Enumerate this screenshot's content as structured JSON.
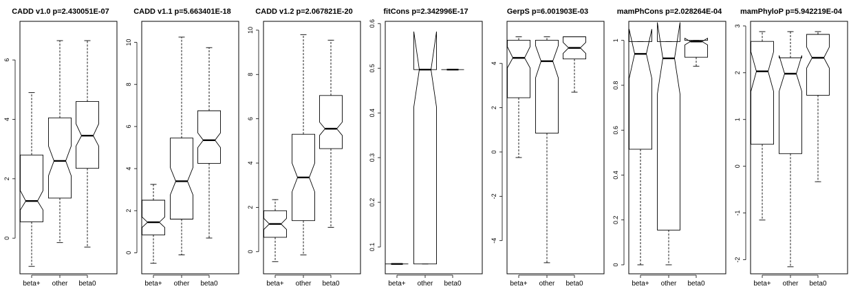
{
  "chart_data": [
    {
      "type": "box",
      "title": "CADD v1.0 p=2.430051E-07",
      "categories": [
        "beta+",
        "other",
        "beta0"
      ],
      "ylim": [
        -1.2,
        7.3
      ],
      "yticks": [
        0,
        2,
        4,
        6
      ],
      "boxes": [
        {
          "name": "beta+",
          "whisker_low": -0.95,
          "q1": 0.55,
          "median": 1.25,
          "q3": 2.8,
          "whisker_high": 4.9,
          "notch_low": 0.95,
          "notch_high": 1.6
        },
        {
          "name": "other",
          "whisker_low": -0.15,
          "q1": 1.35,
          "median": 2.6,
          "q3": 4.05,
          "whisker_high": 6.65,
          "notch_low": 2.1,
          "notch_high": 3.1
        },
        {
          "name": "beta0",
          "whisker_low": -0.3,
          "q1": 2.35,
          "median": 3.45,
          "q3": 4.6,
          "whisker_high": 6.65,
          "notch_low": 3.1,
          "notch_high": 3.85
        }
      ]
    },
    {
      "type": "box",
      "title": "CADD v1.1 p=5.663401E-18",
      "categories": [
        "beta+",
        "other",
        "beta0"
      ],
      "ylim": [
        -1.0,
        11.0
      ],
      "yticks": [
        0,
        2,
        4,
        6,
        8,
        10
      ],
      "boxes": [
        {
          "name": "beta+",
          "whisker_low": -0.5,
          "q1": 0.85,
          "median": 1.45,
          "q3": 2.5,
          "whisker_high": 3.25,
          "notch_low": 1.2,
          "notch_high": 1.7
        },
        {
          "name": "other",
          "whisker_low": -0.1,
          "q1": 1.6,
          "median": 3.4,
          "q3": 5.45,
          "whisker_high": 10.25,
          "notch_low": 2.75,
          "notch_high": 4.05
        },
        {
          "name": "beta0",
          "whisker_low": 0.7,
          "q1": 4.25,
          "median": 5.35,
          "q3": 6.75,
          "whisker_high": 9.75,
          "notch_low": 5.0,
          "notch_high": 5.7
        }
      ]
    },
    {
      "type": "box",
      "title": "CADD v1.2 p=2.067821E-20",
      "categories": [
        "beta+",
        "other",
        "beta0"
      ],
      "ylim": [
        -1.0,
        10.4
      ],
      "yticks": [
        0,
        2,
        4,
        6,
        8,
        10
      ],
      "boxes": [
        {
          "name": "beta+",
          "whisker_low": -0.45,
          "q1": 0.65,
          "median": 1.25,
          "q3": 1.85,
          "whisker_high": 2.35,
          "notch_low": 1.0,
          "notch_high": 1.5
        },
        {
          "name": "other",
          "whisker_low": -0.15,
          "q1": 1.4,
          "median": 3.35,
          "q3": 5.3,
          "whisker_high": 9.8,
          "notch_low": 2.7,
          "notch_high": 4.0
        },
        {
          "name": "beta0",
          "whisker_low": 1.1,
          "q1": 4.65,
          "median": 5.55,
          "q3": 7.05,
          "whisker_high": 9.55,
          "notch_low": 5.25,
          "notch_high": 5.85
        }
      ]
    },
    {
      "type": "box",
      "title": "fitCons p=2.342996E-17",
      "categories": [
        "beta+",
        "other",
        "beta0"
      ],
      "ylim": [
        0.04,
        0.605
      ],
      "yticks": [
        0.1,
        0.2,
        0.3,
        0.4,
        0.5,
        0.6
      ],
      "boxes": [
        {
          "name": "beta+",
          "whisker_low": 0.062,
          "q1": 0.062,
          "median": 0.062,
          "q3": 0.062,
          "whisker_high": 0.062,
          "notch_low": 0.062,
          "notch_high": 0.062
        },
        {
          "name": "other",
          "whisker_low": 0.062,
          "q1": 0.062,
          "median": 0.497,
          "q3": 0.497,
          "whisker_high": 0.497,
          "notch_low": 0.413,
          "notch_high": 0.582
        },
        {
          "name": "beta0",
          "whisker_low": 0.497,
          "q1": 0.497,
          "median": 0.497,
          "q3": 0.497,
          "whisker_high": 0.497,
          "notch_low": 0.497,
          "notch_high": 0.497
        }
      ]
    },
    {
      "type": "box",
      "title": "GerpS p=6.001903E-03",
      "categories": [
        "beta+",
        "other",
        "beta0"
      ],
      "ylim": [
        -5.5,
        5.9
      ],
      "yticks": [
        -4,
        -2,
        0,
        2,
        4
      ],
      "boxes": [
        {
          "name": "beta+",
          "whisker_low": -0.25,
          "q1": 2.45,
          "median": 4.25,
          "q3": 5.05,
          "whisker_high": 5.2,
          "notch_low": 3.8,
          "notch_high": 4.75
        },
        {
          "name": "other",
          "whisker_low": -5.0,
          "q1": 0.85,
          "median": 4.1,
          "q3": 5.05,
          "whisker_high": 5.2,
          "notch_low": 3.35,
          "notch_high": 4.8
        },
        {
          "name": "beta0",
          "whisker_low": 2.7,
          "q1": 4.2,
          "median": 4.7,
          "q3": 5.2,
          "whisker_high": 5.2,
          "notch_low": 4.45,
          "notch_high": 4.95
        }
      ]
    },
    {
      "type": "box",
      "title": "mamPhCons p=2.028264E-04",
      "categories": [
        "beta+",
        "other",
        "beta0"
      ],
      "ylim": [
        -0.04,
        1.085
      ],
      "yticks": [
        0.0,
        0.2,
        0.4,
        0.6,
        0.8,
        1.0
      ],
      "boxes": [
        {
          "name": "beta+",
          "whisker_low": 0.0,
          "q1": 0.515,
          "median": 0.94,
          "q3": 0.995,
          "whisker_high": 0.995,
          "notch_low": 0.83,
          "notch_high": 1.05
        },
        {
          "name": "other",
          "whisker_low": 0.0,
          "q1": 0.155,
          "median": 0.92,
          "q3": 0.995,
          "whisker_high": 0.995,
          "notch_low": 0.76,
          "notch_high": 1.08
        },
        {
          "name": "beta0",
          "whisker_low": 0.885,
          "q1": 0.925,
          "median": 0.995,
          "q3": 1.0,
          "whisker_high": 1.0,
          "notch_low": 0.98,
          "notch_high": 1.01
        }
      ]
    },
    {
      "type": "box",
      "title": "mamPhyloP p=5.942219E-04",
      "categories": [
        "beta+",
        "other",
        "beta0"
      ],
      "ylim": [
        -2.3,
        3.1
      ],
      "yticks": [
        -2,
        -1,
        0,
        1,
        2,
        3
      ],
      "boxes": [
        {
          "name": "beta+",
          "whisker_low": -1.15,
          "q1": 0.47,
          "median": 2.03,
          "q3": 2.67,
          "whisker_high": 2.88,
          "notch_low": 1.6,
          "notch_high": 2.45
        },
        {
          "name": "other",
          "whisker_low": -2.15,
          "q1": 0.27,
          "median": 1.98,
          "q3": 2.32,
          "whisker_high": 2.88,
          "notch_low": 1.6,
          "notch_high": 2.37
        },
        {
          "name": "beta0",
          "whisker_low": -0.33,
          "q1": 1.52,
          "median": 2.32,
          "q3": 2.82,
          "whisker_high": 2.88,
          "notch_low": 2.1,
          "notch_high": 2.55
        }
      ]
    }
  ]
}
